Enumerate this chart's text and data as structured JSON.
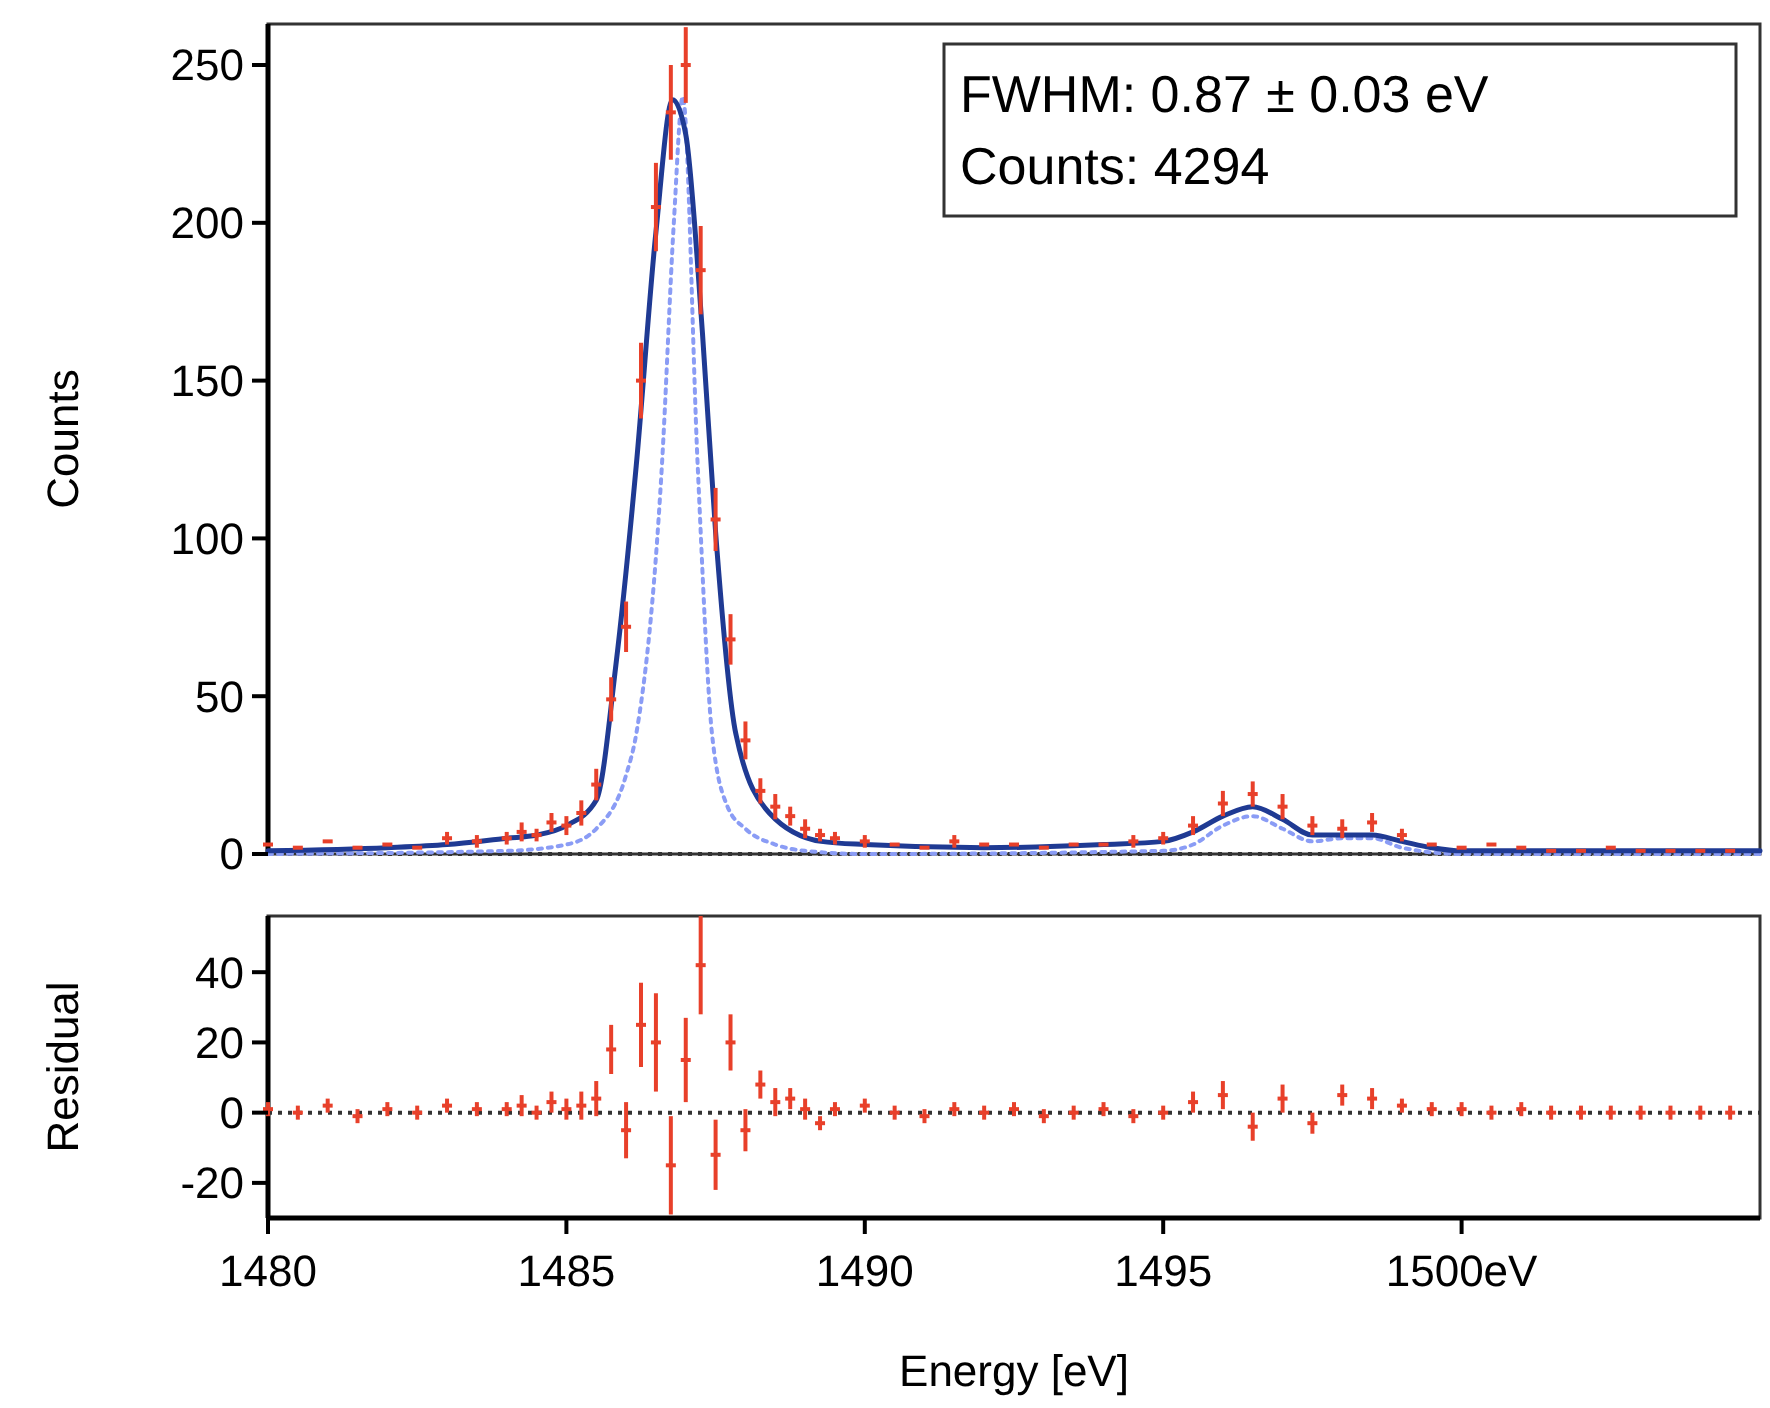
{
  "chart_data": [
    {
      "type": "scatter",
      "ylabel": "Counts",
      "xlim": [
        1480,
        1505
      ],
      "ylim": [
        0,
        263
      ],
      "yticks": [
        0,
        50,
        100,
        150,
        200,
        250
      ],
      "tick_labels": "y",
      "grid": false,
      "annotations": [
        "FWHM: 0.87 ± 0.03 eV",
        "Counts: 4294"
      ],
      "ref_lines": [
        {
          "axis": "y",
          "value": 0,
          "color": "#333333",
          "line_style": "dotted"
        }
      ],
      "series": [
        {
          "type": "line",
          "color": "#8a9cf5",
          "line_style": "dotted",
          "x": [
            1480,
            1484,
            1485,
            1485.5,
            1486,
            1486.17,
            1486.6,
            1486.8,
            1486.95,
            1487.2,
            1487.44,
            1487.7,
            1488,
            1488.5,
            1489,
            1490,
            1495,
            1495.5,
            1496,
            1496.5,
            1497,
            1497.5,
            1498,
            1498.5,
            1499,
            1500,
            1505
          ],
          "values": [
            0,
            1,
            3,
            8,
            25,
            38,
            123,
            200,
            240,
            123,
            38,
            15,
            8,
            3,
            1,
            0,
            1,
            3,
            9,
            12,
            8,
            4,
            5,
            5,
            2,
            0,
            0
          ]
        },
        {
          "type": "line",
          "color": "#1f3a93",
          "line_style": "solid",
          "x": [
            1480,
            1482,
            1483,
            1484,
            1484.5,
            1485,
            1485.5,
            1485.83,
            1486.17,
            1486.5,
            1486.78,
            1487,
            1487.28,
            1487.5,
            1487.84,
            1488.4,
            1489.27,
            1490,
            1492,
            1494,
            1495,
            1495.5,
            1496,
            1496.5,
            1497,
            1497.5,
            1498,
            1498.5,
            1499,
            1499.5,
            1500,
            1502,
            1505
          ],
          "values": [
            1,
            2,
            3,
            5,
            6,
            9,
            17,
            60,
            123,
            197,
            239,
            228,
            165,
            102,
            38,
            13,
            4,
            3,
            2,
            3,
            4,
            7,
            12,
            15,
            11,
            6,
            6,
            6,
            4,
            2,
            1,
            1,
            1
          ]
        },
        {
          "color": "#e8402a",
          "marker": "square",
          "x": [
            1480,
            1480.5,
            1481,
            1481.5,
            1482,
            1482.5,
            1483,
            1483.5,
            1484,
            1484.25,
            1484.5,
            1484.75,
            1485,
            1485.25,
            1485.5,
            1485.75,
            1486,
            1486.25,
            1486.5,
            1486.75,
            1487,
            1487.25,
            1487.5,
            1487.75,
            1488,
            1488.25,
            1488.5,
            1488.75,
            1489,
            1489.25,
            1489.5,
            1490,
            1490.5,
            1491,
            1491.5,
            1492,
            1492.5,
            1493,
            1493.5,
            1494,
            1494.5,
            1495,
            1495.5,
            1496,
            1496.5,
            1497,
            1497.5,
            1498,
            1498.5,
            1499,
            1499.5,
            1500,
            1500.5,
            1501,
            1501.5,
            1502,
            1502.5,
            1503,
            1503.5,
            1504,
            1504.5
          ],
          "values": [
            3,
            2,
            4,
            2,
            3,
            2,
            5,
            4,
            5,
            7,
            6,
            10,
            9,
            13,
            22,
            49,
            72,
            150,
            205,
            235,
            250,
            185,
            106,
            68,
            36,
            20,
            15,
            12,
            8,
            6,
            5,
            4,
            3,
            2,
            4,
            3,
            3,
            2,
            3,
            3,
            4,
            5,
            9,
            16,
            19,
            15,
            9,
            8,
            10,
            6,
            3,
            2,
            3,
            2,
            1,
            1,
            2,
            1,
            1,
            1,
            1
          ],
          "errors": [
            null,
            null,
            null,
            null,
            null,
            null,
            2,
            2,
            2,
            3,
            2,
            3,
            3,
            4,
            5,
            7,
            8,
            12,
            14,
            15,
            12,
            14,
            10,
            8,
            6,
            4,
            4,
            3,
            3,
            2,
            2,
            2,
            null,
            null,
            2,
            null,
            null,
            null,
            null,
            null,
            2,
            2,
            3,
            4,
            4,
            4,
            3,
            3,
            3,
            2,
            null,
            null,
            null,
            null,
            null,
            null,
            null,
            null,
            null,
            null,
            null
          ]
        }
      ]
    },
    {
      "type": "scatter",
      "xlabel": "Energy [eV]",
      "ylabel": "Residual",
      "xlim": [
        1480,
        1505
      ],
      "ylim": [
        -30,
        56
      ],
      "xticks": [
        1480,
        1485,
        1490,
        1495,
        {
          "value": 1500,
          "label": "1500eV"
        }
      ],
      "yticks": [
        -20,
        0,
        20,
        40
      ],
      "grid": false,
      "ref_lines": [
        {
          "axis": "y",
          "value": 0,
          "color": "#333333",
          "line_style": "dotted"
        }
      ],
      "series": [
        {
          "color": "#e8402a",
          "marker": "square",
          "x": [
            1480,
            1480.5,
            1481,
            1481.5,
            1482,
            1482.5,
            1483,
            1483.5,
            1484,
            1484.25,
            1484.5,
            1484.75,
            1485,
            1485.25,
            1485.5,
            1485.75,
            1486,
            1486.25,
            1486.5,
            1486.75,
            1487,
            1487.25,
            1487.5,
            1487.75,
            1488,
            1488.25,
            1488.5,
            1488.75,
            1489,
            1489.25,
            1489.5,
            1490,
            1490.5,
            1491,
            1491.5,
            1492,
            1492.5,
            1493,
            1493.5,
            1494,
            1494.5,
            1495,
            1495.5,
            1496,
            1496.5,
            1497,
            1497.5,
            1498,
            1498.5,
            1499,
            1499.5,
            1500,
            1500.5,
            1501,
            1501.5,
            1502,
            1502.5,
            1503,
            1503.5,
            1504,
            1504.5
          ],
          "values": [
            1,
            0,
            2,
            -1,
            1,
            0,
            2,
            1,
            1,
            2,
            0,
            3,
            1,
            2,
            4,
            18,
            -5,
            25,
            20,
            -15,
            15,
            42,
            -12,
            20,
            -5,
            8,
            3,
            4,
            1,
            -3,
            1,
            2,
            0,
            -1,
            1,
            0,
            1,
            -1,
            0,
            1,
            -1,
            0,
            3,
            5,
            -4,
            4,
            -3,
            5,
            4,
            2,
            1,
            1,
            0,
            1,
            0,
            0,
            0,
            0,
            0,
            0,
            0
          ],
          "errors": [
            2,
            2,
            2,
            2,
            2,
            2,
            2,
            2,
            2,
            3,
            2,
            3,
            3,
            4,
            5,
            7,
            8,
            12,
            14,
            14,
            12,
            14,
            10,
            8,
            6,
            4,
            4,
            3,
            3,
            2,
            2,
            2,
            2,
            2,
            2,
            2,
            2,
            2,
            2,
            2,
            2,
            2,
            3,
            4,
            4,
            4,
            3,
            3,
            3,
            2,
            2,
            2,
            2,
            2,
            2,
            2,
            2,
            2,
            2,
            2,
            2
          ]
        }
      ]
    }
  ]
}
